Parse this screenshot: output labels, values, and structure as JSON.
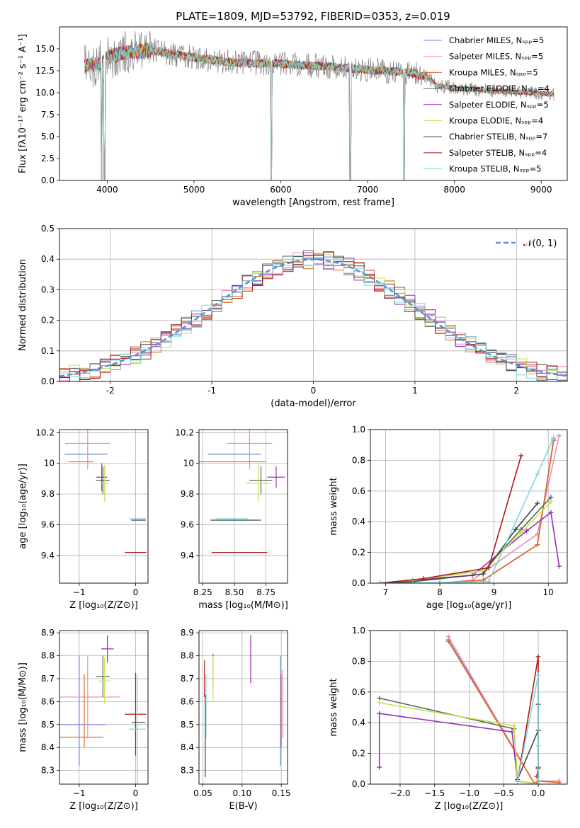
{
  "figure_title": "PLATE=1809, MJD=53792, FIBERID=0353, z=0.019",
  "models": [
    {
      "key": "chabrier_miles",
      "legend": "Chabrier MILES, Nₛₚₚ=5",
      "color": "#6a86d8"
    },
    {
      "key": "salpeter_miles",
      "legend": "Salpeter MILES, Nₛₚₚ=5",
      "color": "#e98cb4"
    },
    {
      "key": "kroupa_miles",
      "legend": "Kroupa MILES, Nₛₚₚ=5",
      "color": "#e06a22"
    },
    {
      "key": "chabrier_elodie",
      "legend": "Chabrier ELODIE, Nₛₚₚ=4",
      "color": "#55695a"
    },
    {
      "key": "salpeter_elodie",
      "legend": "Salpeter ELODIE, Nₛₚₚ=5",
      "color": "#9a2fb0"
    },
    {
      "key": "kroupa_elodie",
      "legend": "Kroupa ELODIE, Nₛₚₚ=4",
      "color": "#c7e34a"
    },
    {
      "key": "chabrier_stelib",
      "legend": "Chabrier STELIB, Nₛₚₚ=7",
      "color": "#404040"
    },
    {
      "key": "salpeter_stelib",
      "legend": "Salpeter STELIB, Nₛₚₚ=4",
      "color": "#b01818"
    },
    {
      "key": "kroupa_stelib",
      "legend": "Kroupa STELIB, Nₛₚₚ=5",
      "color": "#7fd6dc"
    }
  ],
  "chart_data": [
    {
      "id": "spectrum",
      "type": "line",
      "xlabel": "wavelength [Angstrom, rest frame]",
      "ylabel": "Flux [fλ10⁻¹⁷ erg cm⁻² s⁻¹ A⁻¹]",
      "xlim": [
        3450,
        9300
      ],
      "ylim": [
        0,
        17.5
      ],
      "xticks": [
        4000,
        5000,
        6000,
        7000,
        8000,
        9000
      ],
      "yticks": [
        0,
        2.5,
        5.0,
        7.5,
        10.0,
        12.5,
        15.0
      ],
      "ytick_labels": [
        "0.0",
        "2.5",
        "5.0",
        "7.5",
        "10.0",
        "12.5",
        "15.0"
      ],
      "continuum": {
        "x": [
          3760,
          3900,
          4000,
          4200,
          4500,
          5000,
          5500,
          6000,
          6500,
          7000,
          7500,
          7700,
          7800,
          8000,
          8500,
          9000,
          9150
        ],
        "y": [
          13.0,
          13.3,
          14.0,
          14.6,
          14.8,
          14.0,
          13.4,
          13.3,
          13.0,
          12.6,
          12.3,
          11.7,
          10.8,
          10.5,
          10.2,
          9.9,
          9.8
        ]
      },
      "drops": [
        {
          "x": 3934,
          "y": 0
        },
        {
          "x": 3968,
          "y": 0
        },
        {
          "x": 5890,
          "y": 0
        },
        {
          "x": 6800,
          "y": 0
        },
        {
          "x": 7420,
          "y": 0
        }
      ]
    },
    {
      "id": "residuals",
      "type": "step-histogram",
      "xlabel": "(data-model)/error",
      "ylabel": "Normed distribution",
      "xlim": [
        -2.5,
        2.5
      ],
      "ylim": [
        0,
        0.5
      ],
      "xticks": [
        -2,
        -1,
        0,
        1,
        2
      ],
      "yticks": [
        0,
        0.1,
        0.2,
        0.3,
        0.4,
        0.5
      ],
      "ytick_labels": [
        "0.0",
        "0.1",
        "0.2",
        "0.3",
        "0.4",
        "0.5"
      ],
      "bin_width": 0.1,
      "reference": {
        "name": "𝒩(0, 1)",
        "mu": 0,
        "sigma": 1
      }
    },
    {
      "id": "age_vs_Z",
      "type": "errorbar",
      "xlabel": "Z [log₁₀(Z/Z⊙)]",
      "ylabel": "age  [log₁₀(age/yr)]",
      "xlim": [
        -1.35,
        0.22
      ],
      "ylim": [
        9.22,
        10.22
      ],
      "xticks": [
        -1,
        0
      ],
      "xtick_labels": [
        "−1",
        "0"
      ],
      "yticks": [
        9.4,
        9.6,
        9.8,
        10.0,
        10.2
      ],
      "points": [
        {
          "m": "chabrier_miles",
          "x": -0.88,
          "xerr": 0.38,
          "y": 10.06,
          "yerr": 0.0
        },
        {
          "m": "salpeter_miles",
          "x": -0.85,
          "xerr": 0.4,
          "y": 10.13,
          "yerr": 0.17
        },
        {
          "m": "kroupa_miles",
          "x": -0.97,
          "xerr": 0.22,
          "y": 10.01,
          "yerr": 0.0
        },
        {
          "m": "chabrier_elodie",
          "x": -0.58,
          "xerr": 0.12,
          "y": 9.89,
          "yerr": 0.09
        },
        {
          "m": "salpeter_elodie",
          "x": -0.6,
          "xerr": 0.1,
          "y": 9.91,
          "yerr": 0.09
        },
        {
          "m": "kroupa_elodie",
          "x": -0.55,
          "xerr": 0.08,
          "y": 9.87,
          "yerr": 0.12
        },
        {
          "m": "chabrier_stelib",
          "x": 0.05,
          "xerr": 0.13,
          "y": 9.63,
          "yerr": 0.0
        },
        {
          "m": "salpeter_stelib",
          "x": 0.0,
          "xerr": 0.19,
          "y": 9.42,
          "yerr": 0.0
        },
        {
          "m": "kroupa_stelib",
          "x": 0.03,
          "xerr": 0.15,
          "y": 9.64,
          "yerr": 0.0
        }
      ]
    },
    {
      "id": "age_vs_mass",
      "type": "errorbar",
      "xlabel": "mass [log₁₀(M/M⊙)]",
      "ylabel": "",
      "xlim": [
        8.22,
        8.92
      ],
      "ylim": [
        9.22,
        10.22
      ],
      "xticks": [
        8.25,
        8.5,
        8.75
      ],
      "xtick_labels": [
        "8.25",
        "8.50",
        "8.75"
      ],
      "yticks": [
        9.4,
        9.6,
        9.8,
        10.0,
        10.2
      ],
      "points": [
        {
          "m": "chabrier_miles",
          "x": 8.5,
          "xerr": 0.21,
          "y": 10.06,
          "yerr": 0.0
        },
        {
          "m": "salpeter_miles",
          "x": 8.62,
          "xerr": 0.18,
          "y": 10.13,
          "yerr": 0.17
        },
        {
          "m": "kroupa_miles",
          "x": 8.45,
          "xerr": 0.3,
          "y": 10.01,
          "yerr": 0.0
        },
        {
          "m": "chabrier_elodie",
          "x": 8.71,
          "xerr": 0.09,
          "y": 9.89,
          "yerr": 0.09
        },
        {
          "m": "salpeter_elodie",
          "x": 8.83,
          "xerr": 0.07,
          "y": 9.91,
          "yerr": 0.07
        },
        {
          "m": "kroupa_elodie",
          "x": 8.69,
          "xerr": 0.1,
          "y": 9.87,
          "yerr": 0.12
        },
        {
          "m": "chabrier_stelib",
          "x": 8.51,
          "xerr": 0.2,
          "y": 9.63,
          "yerr": 0.0
        },
        {
          "m": "salpeter_stelib",
          "x": 8.54,
          "xerr": 0.22,
          "y": 9.42,
          "yerr": 0.0
        },
        {
          "m": "kroupa_stelib",
          "x": 8.48,
          "xerr": 0.13,
          "y": 9.64,
          "yerr": 0.0
        }
      ]
    },
    {
      "id": "weight_vs_age",
      "type": "line",
      "xlabel": "age  [log₁₀(age/yr)]",
      "ylabel": "mass weight",
      "xlim": [
        6.72,
        10.35
      ],
      "ylim": [
        0,
        1.0
      ],
      "xticks": [
        7,
        8,
        9,
        10
      ],
      "yticks": [
        0,
        0.2,
        0.4,
        0.6,
        0.8,
        1.0
      ],
      "ytick_labels": [
        "0.0",
        "0.2",
        "0.4",
        "0.6",
        "0.8",
        "1.0"
      ],
      "series": [
        {
          "m": "chabrier_miles",
          "x": [
            6.9,
            8.0,
            8.8,
            9.8,
            10.1
          ],
          "y": [
            0.0,
            0.0,
            0.02,
            0.25,
            0.94
          ]
        },
        {
          "m": "salpeter_miles",
          "x": [
            6.9,
            8.0,
            8.6,
            9.8,
            10.2
          ],
          "y": [
            0.0,
            0.0,
            0.02,
            0.32,
            0.96
          ]
        },
        {
          "m": "kroupa_miles",
          "x": [
            6.9,
            8.0,
            8.8,
            9.8,
            10.1
          ],
          "y": [
            0.0,
            0.0,
            0.02,
            0.25,
            0.93
          ]
        },
        {
          "m": "chabrier_elodie",
          "x": [
            6.9,
            7.5,
            8.8,
            9.5,
            10.05
          ],
          "y": [
            0.0,
            0.02,
            0.08,
            0.35,
            0.56
          ]
        },
        {
          "m": "salpeter_elodie",
          "x": [
            6.9,
            7.5,
            8.6,
            9.6,
            10.05,
            10.2
          ],
          "y": [
            0.0,
            0.02,
            0.05,
            0.34,
            0.46,
            0.11
          ]
        },
        {
          "m": "kroupa_elodie",
          "x": [
            6.9,
            7.5,
            8.8,
            9.5,
            10.05
          ],
          "y": [
            0.0,
            0.02,
            0.08,
            0.33,
            0.53
          ]
        },
        {
          "m": "chabrier_stelib",
          "x": [
            6.9,
            7.5,
            8.8,
            9.4,
            9.8
          ],
          "y": [
            0.0,
            0.01,
            0.06,
            0.35,
            0.52
          ]
        },
        {
          "m": "salpeter_stelib",
          "x": [
            6.9,
            7.7,
            8.9,
            9.5
          ],
          "y": [
            0.0,
            0.03,
            0.1,
            0.83
          ]
        },
        {
          "m": "kroupa_stelib",
          "x": [
            6.9,
            7.5,
            8.9,
            9.8,
            10.1
          ],
          "y": [
            0.0,
            0.0,
            0.01,
            0.71,
            0.95
          ]
        }
      ]
    },
    {
      "id": "mass_vs_Z",
      "type": "errorbar",
      "xlabel": "Z [log₁₀(Z/Z⊙)]",
      "ylabel": "mass [log₁₀(M/M⊙)]",
      "xlim": [
        -1.35,
        0.22
      ],
      "ylim": [
        8.24,
        8.91
      ],
      "xticks": [
        -1,
        0
      ],
      "xtick_labels": [
        "−1",
        "0"
      ],
      "yticks": [
        8.3,
        8.4,
        8.5,
        8.6,
        8.7,
        8.8,
        8.9
      ],
      "points": [
        {
          "m": "chabrier_miles",
          "x": -1.12,
          "xerr": 0.6,
          "y": 8.5,
          "yerr": 0.0
        },
        {
          "m": "chabrier_miles",
          "x": -1.0,
          "xerr": 0.0,
          "y": 8.56,
          "yerr": 0.24
        },
        {
          "m": "salpeter_miles",
          "x": -0.85,
          "xerr": 0.58,
          "y": 8.62,
          "yerr": 0.18
        },
        {
          "m": "kroupa_miles",
          "x": -0.97,
          "xerr": 0.4,
          "y": 8.445,
          "yerr": 0.0
        },
        {
          "m": "kroupa_miles",
          "x": -0.91,
          "xerr": 0.0,
          "y": 8.56,
          "yerr": 0.16
        },
        {
          "m": "chabrier_elodie",
          "x": -0.58,
          "xerr": 0.12,
          "y": 8.71,
          "yerr": 0.09
        },
        {
          "m": "salpeter_elodie",
          "x": -0.5,
          "xerr": 0.11,
          "y": 8.83,
          "yerr": 0.06
        },
        {
          "m": "kroupa_elodie",
          "x": -0.55,
          "xerr": 0.1,
          "y": 8.69,
          "yerr": 0.1
        },
        {
          "m": "chabrier_stelib",
          "x": 0.05,
          "xerr": 0.12,
          "y": 8.51,
          "yerr": 0.0
        },
        {
          "m": "salpeter_stelib",
          "x": 0.0,
          "xerr": 0.19,
          "y": 8.545,
          "yerr": 0.18
        },
        {
          "m": "kroupa_stelib",
          "x": 0.03,
          "xerr": 0.15,
          "y": 8.48,
          "yerr": 0.24
        }
      ]
    },
    {
      "id": "mass_vs_ebv",
      "type": "errorbar",
      "xlabel": "E(B-V)",
      "ylabel": "",
      "xlim": [
        0.045,
        0.158
      ],
      "ylim": [
        8.24,
        8.91
      ],
      "xticks": [
        0.05,
        0.1,
        0.15
      ],
      "xtick_labels": [
        "0.05",
        "0.10",
        "0.15"
      ],
      "yticks": [
        8.3,
        8.4,
        8.5,
        8.6,
        8.7,
        8.8,
        8.9
      ],
      "points": [
        {
          "m": "salpeter_stelib",
          "x": 0.052,
          "xerr": 0.0,
          "y": 8.7,
          "yerr": 0.08
        },
        {
          "m": "chabrier_stelib",
          "x": 0.053,
          "xerr": 0.0,
          "y": 8.45,
          "yerr": 0.18
        },
        {
          "m": "kroupa_stelib",
          "x": 0.054,
          "xerr": 0.0,
          "y": 8.58,
          "yerr": 0.14
        },
        {
          "m": "chabrier_elodie",
          "x": 0.063,
          "xerr": 0.0,
          "y": 8.73,
          "yerr": 0.08
        },
        {
          "m": "kroupa_elodie",
          "x": 0.063,
          "xerr": 0.0,
          "y": 8.7,
          "yerr": 0.1
        },
        {
          "m": "salpeter_elodie",
          "x": 0.111,
          "xerr": 0.0,
          "y": 8.785,
          "yerr": 0.105
        },
        {
          "m": "chabrier_miles",
          "x": 0.149,
          "xerr": 0.0,
          "y": 8.56,
          "yerr": 0.24
        },
        {
          "m": "kroupa_miles",
          "x": 0.15,
          "xerr": 0.0,
          "y": 8.56,
          "yerr": 0.16
        },
        {
          "m": "salpeter_miles",
          "x": 0.152,
          "xerr": 0.0,
          "y": 8.59,
          "yerr": 0.15
        }
      ]
    },
    {
      "id": "weight_vs_Z",
      "type": "line",
      "xlabel": "Z [log₁₀(Z/Z⊙)]",
      "ylabel": "mass weight",
      "xlim": [
        -2.43,
        0.42
      ],
      "ylim": [
        0,
        1.0
      ],
      "xticks": [
        -2.0,
        -1.5,
        -1.0,
        -0.5,
        0.0
      ],
      "xtick_labels": [
        "−2.0",
        "−1.5",
        "−1.0",
        "−0.5",
        "0.0"
      ],
      "yticks": [
        0,
        0.2,
        0.4,
        0.6,
        0.8,
        1.0
      ],
      "ytick_labels": [
        "0.0",
        "0.2",
        "0.4",
        "0.6",
        "0.8",
        "1.0"
      ],
      "series": [
        {
          "m": "chabrier_miles",
          "x": [
            -1.3,
            -0.05,
            0.0,
            0.3
          ],
          "y": [
            0.94,
            0.0,
            0.02,
            0.02
          ]
        },
        {
          "m": "salpeter_miles",
          "x": [
            -1.3,
            -0.05,
            0.0,
            0.3
          ],
          "y": [
            0.96,
            0.0,
            0.02,
            0.02
          ]
        },
        {
          "m": "kroupa_miles",
          "x": [
            -1.3,
            -0.05,
            0.0,
            0.3
          ],
          "y": [
            0.93,
            0.0,
            0.02,
            0.01
          ]
        },
        {
          "m": "chabrier_elodie",
          "x": [
            -2.3,
            -0.35,
            -0.3,
            0.0
          ],
          "y": [
            0.56,
            0.36,
            0.02,
            0.0
          ]
        },
        {
          "m": "salpeter_elodie",
          "x": [
            -2.3,
            -2.3,
            -0.38,
            -0.3,
            0.0
          ],
          "y": [
            0.11,
            0.46,
            0.34,
            0.02,
            0.0
          ]
        },
        {
          "m": "kroupa_elodie",
          "x": [
            -2.3,
            -0.35,
            -0.3,
            0.0
          ],
          "y": [
            0.53,
            0.38,
            0.02,
            0.0
          ]
        },
        {
          "m": "chabrier_stelib",
          "x": [
            -0.3,
            0.0,
            0.0,
            0.0,
            0.0
          ],
          "y": [
            0.03,
            0.35,
            0.52,
            0.11,
            0.0
          ]
        },
        {
          "m": "salpeter_stelib",
          "x": [
            -0.3,
            0.0,
            0.0,
            -0.02
          ],
          "y": [
            0.02,
            0.83,
            0.1,
            0.05
          ]
        },
        {
          "m": "kroupa_stelib",
          "x": [
            -0.3,
            0.0,
            0.0,
            0.0,
            0.0
          ],
          "y": [
            0.02,
            0.71,
            0.25,
            0.0,
            0.0
          ]
        }
      ]
    }
  ]
}
